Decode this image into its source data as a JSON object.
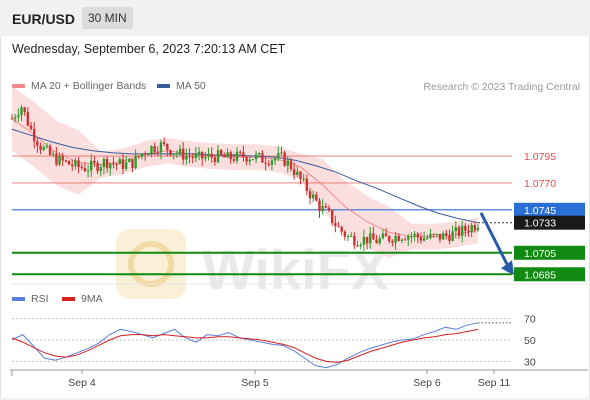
{
  "header": {
    "symbol": "EUR/USD",
    "timeframe": "30 MIN"
  },
  "datetime": "Wednesday, September 6, 2023 7:20:13 AM CET",
  "legend": {
    "ma20": {
      "label": "MA 20 + Bollinger Bands",
      "color": "#f08a8a"
    },
    "ma50": {
      "label": "MA 50",
      "color": "#355c9b"
    }
  },
  "research": "Research © 2023 Trading Central",
  "rsi_legend": {
    "rsi": {
      "label": "RSI",
      "color": "#5b7fd8"
    },
    "ma9": {
      "label": "9MA",
      "color": "#d82020"
    }
  },
  "watermark": "WikiFX",
  "chart_data": [
    {
      "type": "candlestick",
      "title": "EUR/USD 30 MIN",
      "x_labels": [
        "Sep 4",
        "Sep 5",
        "Sep 6",
        "Sep 11"
      ],
      "ylim": [
        1.0675,
        1.085
      ],
      "current_price": 1.0733,
      "levels": [
        {
          "label": "1.0795",
          "value": 1.0795,
          "role": "resistance",
          "color": "#e44a4a"
        },
        {
          "label": "1.0770",
          "value": 1.077,
          "role": "resistance",
          "color": "#e44a4a"
        },
        {
          "label": "1.0745",
          "value": 1.0745,
          "role": "pivot",
          "color": "#2a6fd6"
        },
        {
          "label": "1.0733",
          "value": 1.0733,
          "role": "last",
          "color": "#1a1a1a"
        },
        {
          "label": "1.0705",
          "value": 1.0705,
          "role": "support",
          "color": "#118a11"
        },
        {
          "label": "1.0685",
          "value": 1.0685,
          "role": "support",
          "color": "#118a11"
        }
      ],
      "price_path": [
        1.083,
        1.0842,
        1.082,
        1.0805,
        1.0796,
        1.0791,
        1.0788,
        1.0785,
        1.0784,
        1.0786,
        1.079,
        1.0788,
        1.0787,
        1.0789,
        1.0798,
        1.0803,
        1.0805,
        1.0801,
        1.0797,
        1.0795,
        1.0793,
        1.0794,
        1.0795,
        1.0793,
        1.0794,
        1.0795,
        1.0794,
        1.0792,
        1.0793,
        1.0793,
        1.0785,
        1.0772,
        1.076,
        1.0748,
        1.074,
        1.0728,
        1.072,
        1.0717,
        1.0718,
        1.0716,
        1.0718,
        1.072,
        1.0722,
        1.0721,
        1.0719,
        1.0719,
        1.072,
        1.0722,
        1.0724,
        1.0728,
        1.0733
      ],
      "ma50_path": [
        1.082,
        1.0814,
        1.0808,
        1.0803,
        1.08,
        1.0798,
        1.0797,
        1.0797,
        1.0797,
        1.0797,
        1.0796,
        1.0796,
        1.0795,
        1.0794,
        1.0791,
        1.0786,
        1.078,
        1.0772,
        1.0765,
        1.0757,
        1.0749,
        1.0742,
        1.0737,
        1.0733
      ],
      "ma20_path": [
        1.083,
        1.0815,
        1.0798,
        1.0789,
        1.0787,
        1.079,
        1.0797,
        1.08,
        1.0797,
        1.0795,
        1.0794,
        1.0794,
        1.0792,
        1.0785,
        1.0768,
        1.0748,
        1.0734,
        1.0724,
        1.072,
        1.072,
        1.0722,
        1.0726
      ],
      "forecast": {
        "from": 1.0745,
        "to": 1.0685,
        "direction": "down"
      }
    },
    {
      "type": "line",
      "title": "RSI",
      "ylim": [
        20,
        80
      ],
      "yticks": [
        70,
        50,
        30
      ],
      "series": [
        {
          "name": "RSI",
          "values": [
            50,
            55,
            44,
            33,
            31,
            34,
            38,
            42,
            47,
            55,
            60,
            58,
            55,
            52,
            56,
            60,
            52,
            48,
            55,
            54,
            57,
            52,
            50,
            48,
            46,
            45,
            40,
            33,
            26,
            24,
            27,
            33,
            38,
            42,
            45,
            48,
            50,
            51,
            55,
            58,
            62,
            60,
            64,
            66
          ]
        },
        {
          "name": "9MA",
          "values": [
            52,
            48,
            43,
            38,
            35,
            34,
            36,
            40,
            45,
            50,
            54,
            55,
            55,
            54,
            55,
            54,
            53,
            52,
            52,
            53,
            53,
            52,
            51,
            50,
            48,
            46,
            43,
            38,
            33,
            30,
            29,
            31,
            35,
            39,
            42,
            45,
            48,
            50,
            52,
            53,
            55,
            56,
            58,
            60
          ]
        }
      ]
    }
  ]
}
